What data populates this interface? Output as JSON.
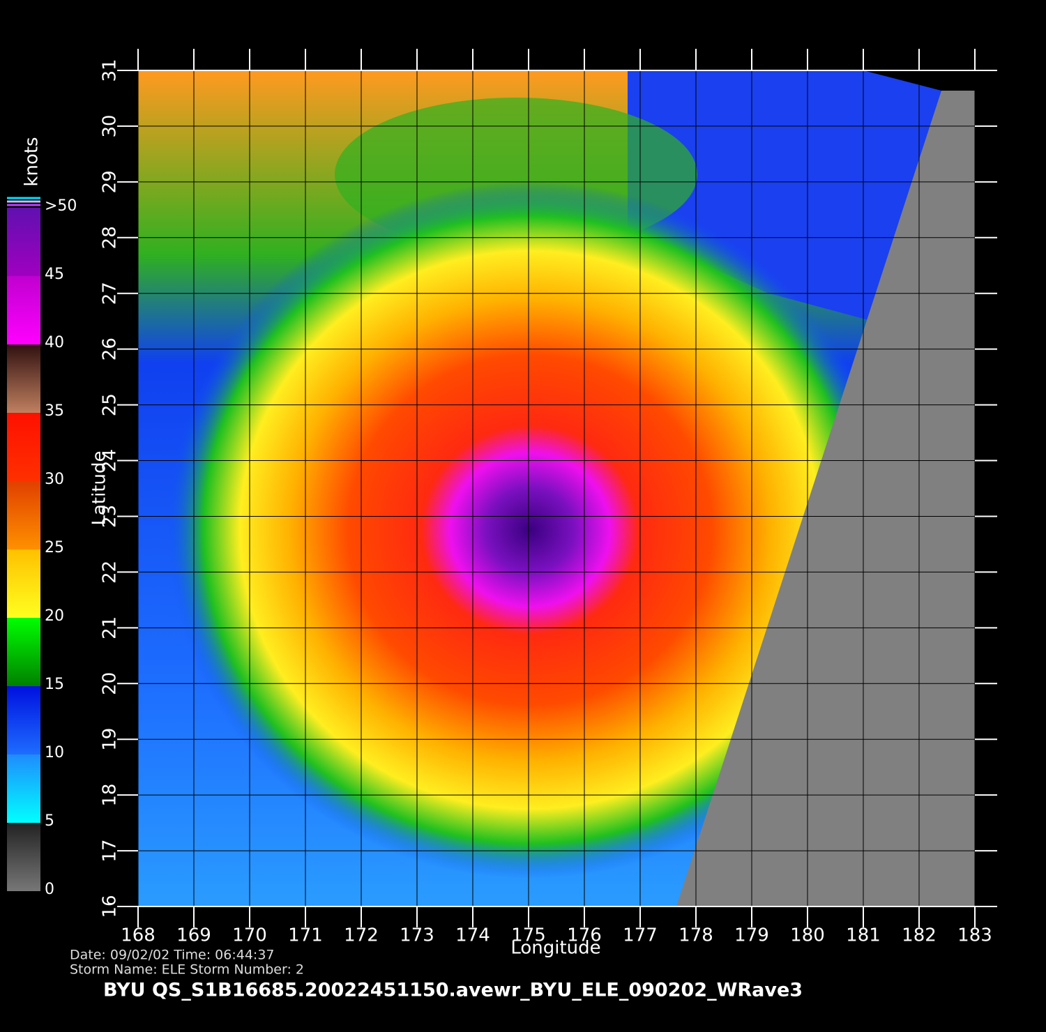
{
  "chart_data": {
    "type": "wind-map",
    "xlabel": "Longitude",
    "ylabel": "Latitude",
    "xlim": [
      168,
      183
    ],
    "ylim": [
      16,
      31
    ],
    "xticks": [
      168,
      169,
      170,
      171,
      172,
      173,
      174,
      175,
      176,
      177,
      178,
      179,
      180,
      181,
      182,
      183
    ],
    "yticks": [
      16,
      17,
      18,
      19,
      20,
      21,
      22,
      23,
      24,
      25,
      26,
      27,
      28,
      29,
      30,
      31
    ],
    "grid": true,
    "colorbar": {
      "title": "knots",
      "lim": [
        0,
        50
      ],
      "ticks": [
        0,
        5,
        10,
        15,
        20,
        25,
        30,
        35,
        40,
        45,
        {
          "value": 50,
          "label": ">50"
        }
      ],
      "colors": [
        [
          "#777777",
          "#222222"
        ],
        [
          "#00ffff",
          "#1e8cff"
        ],
        [
          "#1e6cff",
          "#0010e0"
        ],
        [
          "#008000",
          "#00ff00"
        ],
        [
          "#ffff20",
          "#ffc000"
        ],
        [
          "#ff9000",
          "#e04000"
        ],
        [
          "#ff3000",
          "#ff1000"
        ],
        [
          "#c08060",
          "#301010"
        ],
        [
          "#ff00ff",
          "#c000d0"
        ],
        [
          "#a000c0",
          "#6010b0"
        ]
      ]
    },
    "footer": {
      "date": "Date: 09/02/02   Time: 06:44:37",
      "storm": "Storm  Name: ELE    Storm  Number: 2",
      "file": "BYU  QS_S1B16685.20022451150.avewr_BYU_ELE_090202_WRave3"
    }
  }
}
